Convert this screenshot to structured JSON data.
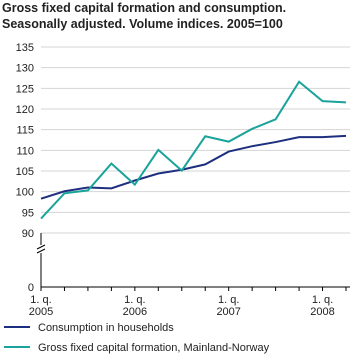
{
  "chart_data": {
    "type": "line",
    "title": "Gross fixed capital formation and consumption.",
    "subtitle": "Seasonally adjusted. Volume indices. 2005=100",
    "categories": [
      "1. q.\n2005",
      null,
      null,
      null,
      "1. q.\n2006",
      null,
      null,
      null,
      "1. q.\n2007",
      null,
      null,
      null,
      "1. q.\n2008",
      null
    ],
    "series": [
      {
        "name": "Consumption in households",
        "color": "#1f2f7f",
        "values": [
          98.3,
          100.1,
          101.0,
          100.8,
          102.7,
          104.4,
          105.3,
          106.6,
          109.7,
          111.0,
          112.0,
          113.2,
          113.2,
          113.5
        ]
      },
      {
        "name": "Gross fixed capital formation, Mainland-Norway",
        "color": "#1aa39a",
        "values": [
          93.5,
          99.6,
          100.3,
          106.8,
          101.7,
          110.1,
          105.1,
          113.4,
          112.1,
          115.2,
          117.5,
          126.6,
          121.9,
          121.6
        ]
      }
    ],
    "ylim": [
      0,
      135
    ],
    "ybreak": [
      0,
      90
    ],
    "yticks": [
      0,
      90,
      95,
      100,
      105,
      110,
      115,
      120,
      125,
      130,
      135
    ],
    "grid": true
  }
}
